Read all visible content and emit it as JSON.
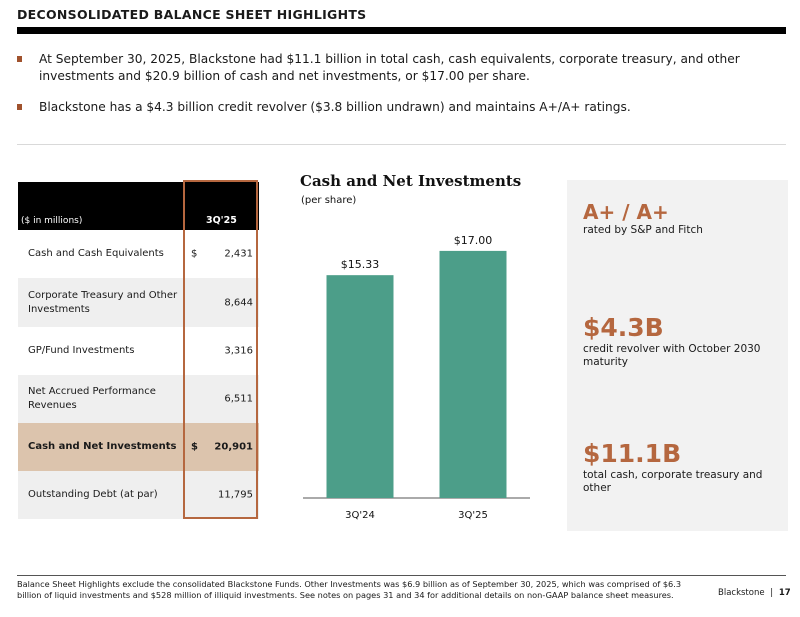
{
  "header": {
    "title": "DECONSOLIDATED BALANCE SHEET HIGHLIGHTS"
  },
  "bullets": [
    "At September 30, 2025, Blackstone had $11.1 billion in total cash, cash equivalents, corporate treasury, and other investments and $20.9 billion of cash and net investments, or $17.00 per share.",
    "Blackstone has a $4.3 billion credit revolver ($3.8 billion undrawn) and maintains A+/A+ ratings."
  ],
  "colors": {
    "accent": "#b5673f",
    "bar": "#4c9e89",
    "highlight_row": "#dcc4ad"
  },
  "table": {
    "units_label": "($ in millions)",
    "column_header": "3Q'25",
    "rows": [
      {
        "label": "Cash and Cash Equivalents",
        "currency": "$",
        "value": "2,431"
      },
      {
        "label": "Corporate Treasury and Other Investments",
        "currency": "",
        "value": "8,644"
      },
      {
        "label": "GP/Fund Investments",
        "currency": "",
        "value": "3,316"
      },
      {
        "label": "Net Accrued Performance Revenues",
        "currency": "",
        "value": "6,511"
      },
      {
        "label": "Cash and Net Investments",
        "currency": "$",
        "value": "20,901"
      },
      {
        "label": "Outstanding Debt (at par)",
        "currency": "",
        "value": "11,795"
      }
    ]
  },
  "chart_data": {
    "type": "bar",
    "title": "Cash and Net Investments",
    "subtitle": "(per share)",
    "categories": [
      "3Q'24",
      "3Q'25"
    ],
    "values": [
      15.33,
      17.0
    ],
    "data_labels": [
      "$15.33",
      "$17.00"
    ],
    "xlabel": "",
    "ylabel": "",
    "ylim": [
      0,
      18.3
    ],
    "grid": false
  },
  "panel": {
    "kpis": [
      {
        "value": "A+ / A+",
        "desc": "rated by S&P and Fitch"
      },
      {
        "value": "$4.3B",
        "desc": "credit revolver with October 2030 maturity"
      },
      {
        "value": "$11.1B",
        "desc": "total cash, corporate treasury and other"
      }
    ]
  },
  "footer": {
    "note": "Balance Sheet Highlights exclude the consolidated Blackstone Funds. Other Investments was $6.9 billion as of September 30, 2025, which was comprised of $6.3 billion of liquid investments and $528 million of illiquid investments. See notes on pages 31 and 34 for additional details on non-GAAP balance sheet measures.",
    "brand": "Blackstone",
    "separator": "|",
    "page_number": "17"
  }
}
